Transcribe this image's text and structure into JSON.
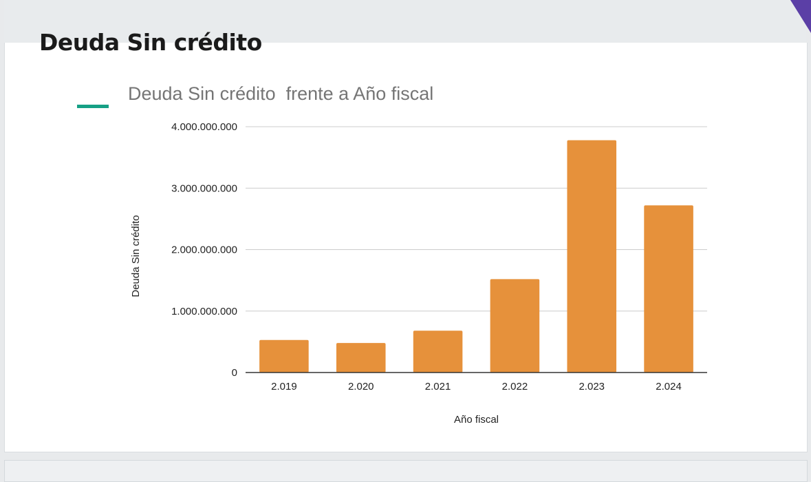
{
  "page": {
    "title": "Deuda Sin crédito"
  },
  "colors": {
    "bar": "#e6913b",
    "legend_swatch": "#16a085",
    "gridline": "#cccccc",
    "axis": "#333333",
    "accent_corner": "#5b3fa6"
  },
  "chart_data": {
    "type": "bar",
    "title": "Deuda Sin crédito  frente a Año fiscal",
    "xlabel": "Año fiscal",
    "ylabel": "Deuda Sin crédito",
    "categories": [
      "2.019",
      "2.020",
      "2.021",
      "2.022",
      "2.023",
      "2.024"
    ],
    "values": [
      530000000,
      480000000,
      680000000,
      1520000000,
      3780000000,
      2720000000
    ],
    "ylim": [
      0,
      4000000000
    ],
    "yticks": [
      0,
      1000000000,
      2000000000,
      3000000000,
      4000000000
    ],
    "ytick_labels": [
      "0",
      "1.000.000.000",
      "2.000.000.000",
      "3.000.000.000",
      "4.000.000.000"
    ],
    "grid": true,
    "legend": "top-left"
  }
}
